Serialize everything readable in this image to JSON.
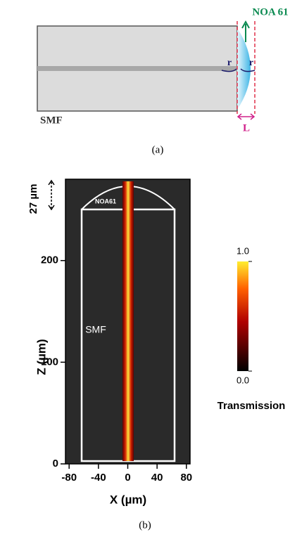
{
  "panel_a": {
    "material_label": "NOA 61",
    "radius_label_left": "r",
    "radius_label_right": "r",
    "fiber_label": "SMF",
    "length_label": "L",
    "caption": "(a)"
  },
  "panel_b": {
    "type": "heatmap",
    "xlabel": "X (µm)",
    "ylabel": "Z (µm)",
    "xlim": [
      -85,
      85
    ],
    "ylim": [
      0,
      280
    ],
    "xticks": [
      -80,
      -40,
      0,
      40,
      80
    ],
    "yticks": [
      0,
      100,
      200
    ],
    "lens_label": "NOA61",
    "fiber_label": "SMF",
    "lens_height_label": "27 µm",
    "colorbar": {
      "label": "Transmission",
      "ticks": [
        {
          "value": 0,
          "label": "0.0"
        },
        {
          "value": 1,
          "label": "1.0"
        }
      ]
    },
    "caption": "(b)"
  }
}
